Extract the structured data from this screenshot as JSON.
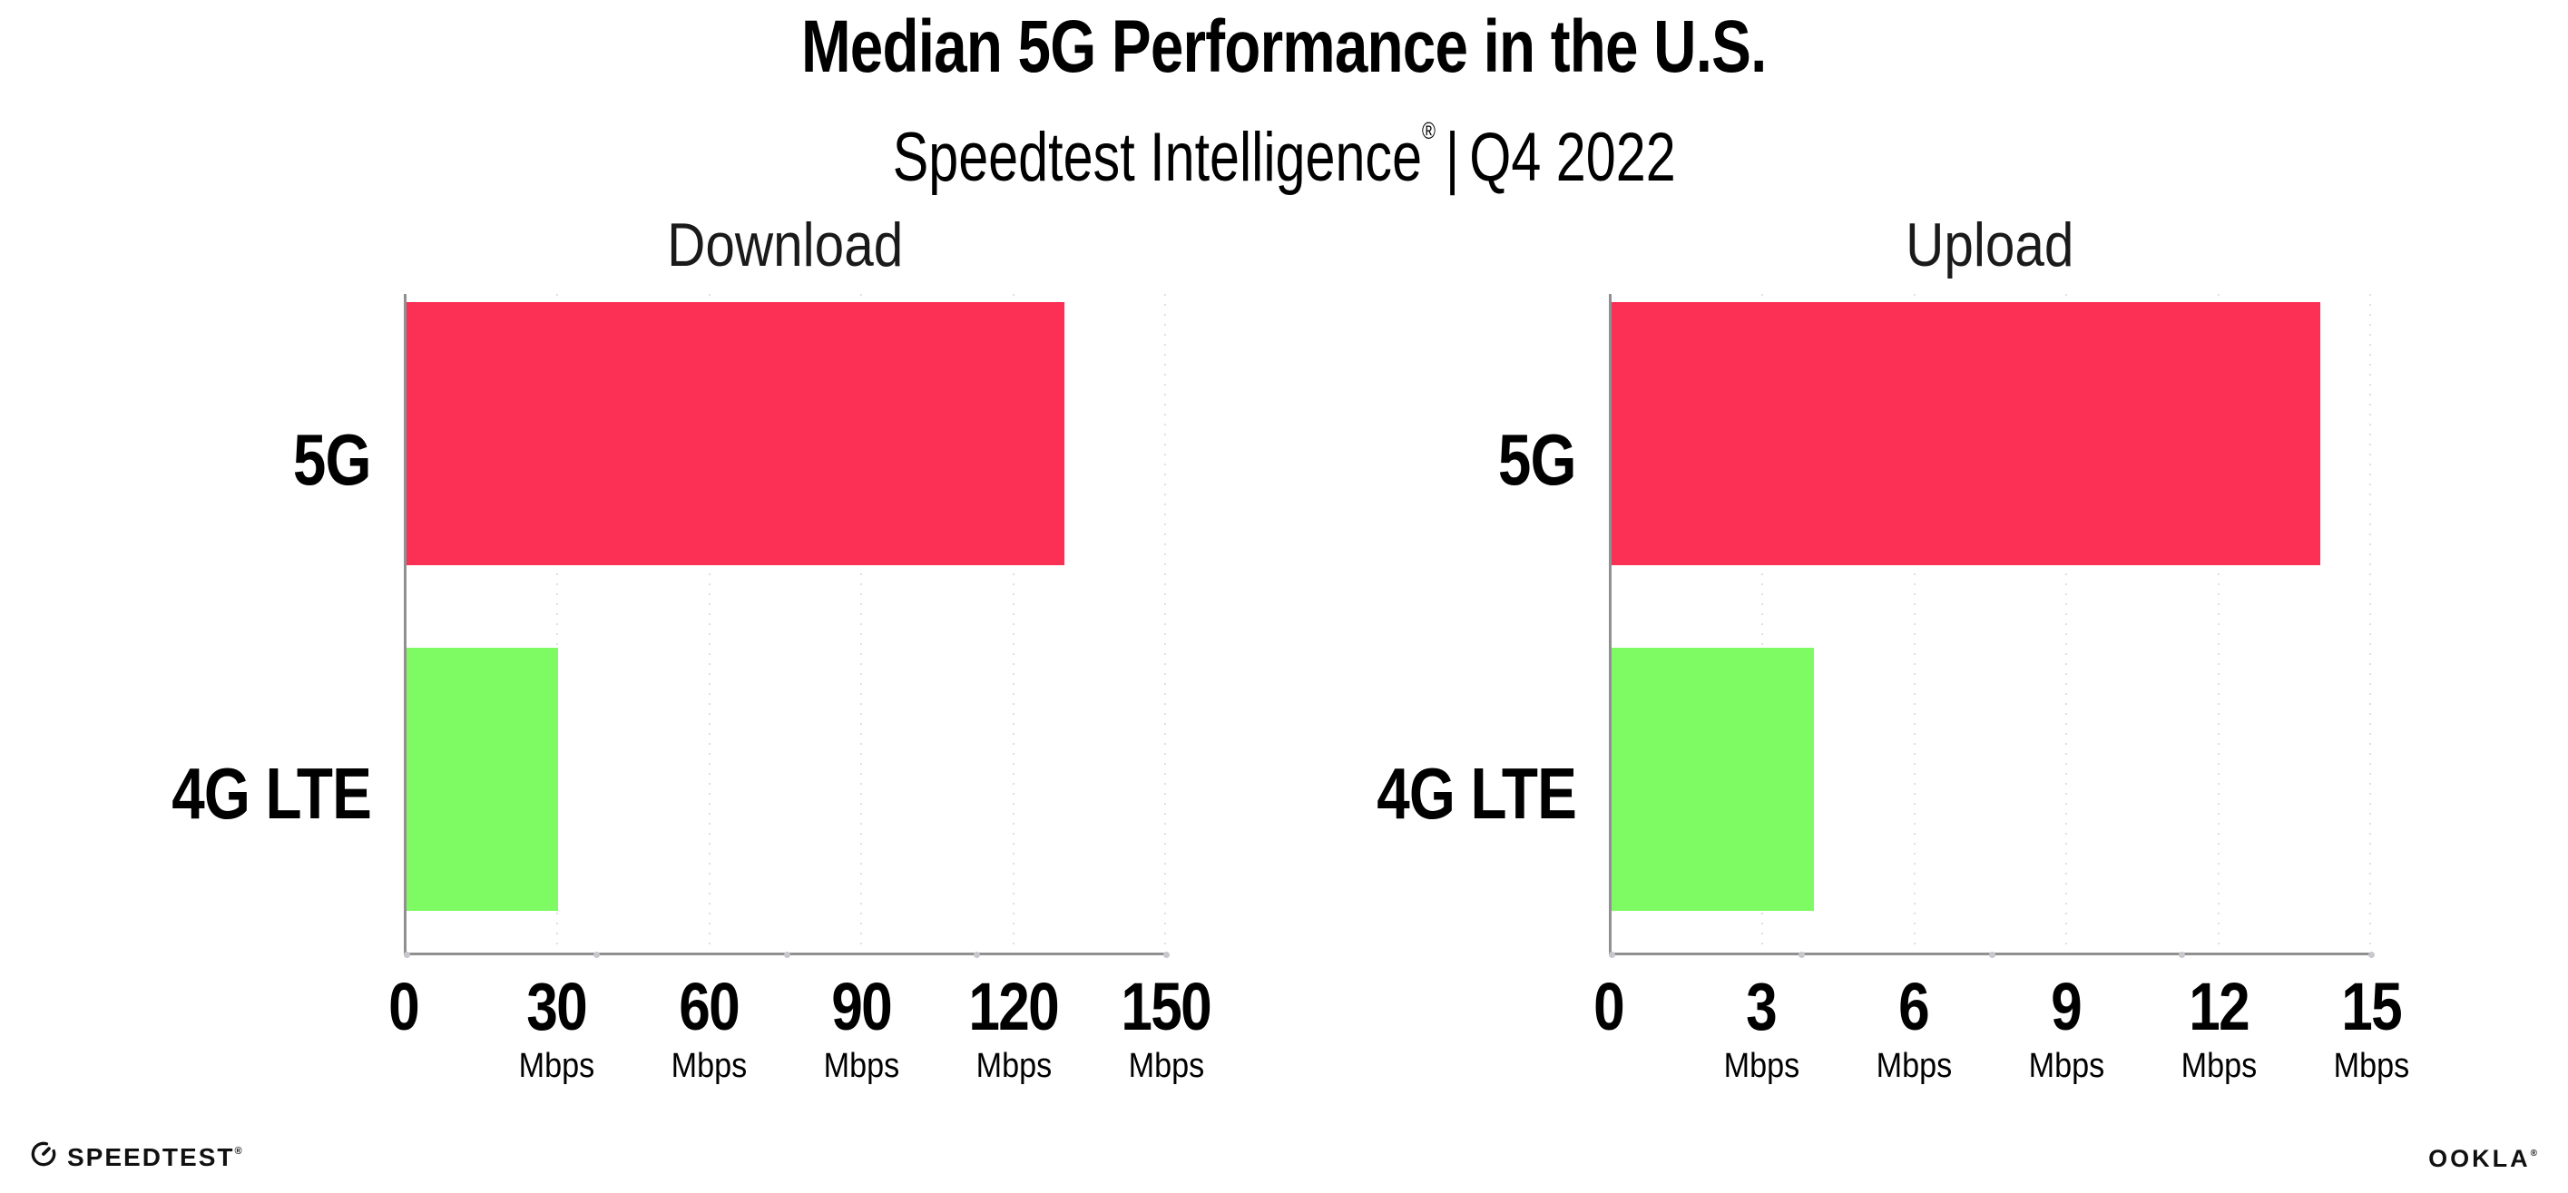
{
  "header": {
    "title": "Median 5G Performance in the U.S.",
    "subtitle": {
      "brand": "Speedtest Intelligence",
      "registered_mark": "®",
      "separator": "|",
      "period": "Q4 2022"
    }
  },
  "chart_data": [
    {
      "type": "bar",
      "orientation": "horizontal",
      "title": "Download",
      "categories": [
        "5G",
        "4G LTE"
      ],
      "values": [
        130,
        30
      ],
      "unit": "Mbps",
      "xlim": [
        0,
        150
      ],
      "xticks": [
        0,
        30,
        60,
        90,
        120,
        150
      ],
      "xtick_unit_suffix": "Mbps",
      "bar_colors": [
        "#FC2F55",
        "#7EFB63"
      ],
      "grid": "vertical-dotted",
      "legend": "none"
    },
    {
      "type": "bar",
      "orientation": "horizontal",
      "title": "Upload",
      "categories": [
        "5G",
        "4G LTE"
      ],
      "values": [
        14,
        4
      ],
      "unit": "Mbps",
      "xlim": [
        0,
        15
      ],
      "xticks": [
        0,
        3,
        6,
        9,
        12,
        15
      ],
      "xtick_unit_suffix": "Mbps",
      "bar_colors": [
        "#FC2F55",
        "#7EFB63"
      ],
      "grid": "vertical-dotted",
      "legend": "none"
    }
  ],
  "footer": {
    "speedtest": {
      "icon": "speedtest-gauge-icon",
      "wordmark": "SPEEDTEST",
      "mark": "®"
    },
    "ookla": {
      "wordmark": "OOKLA",
      "mark": "®"
    }
  },
  "colors": {
    "background": "#FFFFFF",
    "bar_5g": "#FC2F55",
    "bar_4g_lte": "#7EFB63",
    "axis": "#909090",
    "gridline": "#DFDFE5",
    "tick_dot": "#C7C7CD",
    "title_text": "#000000",
    "chart_title_text": "#1A1A1A",
    "logo_text": "#111111"
  }
}
